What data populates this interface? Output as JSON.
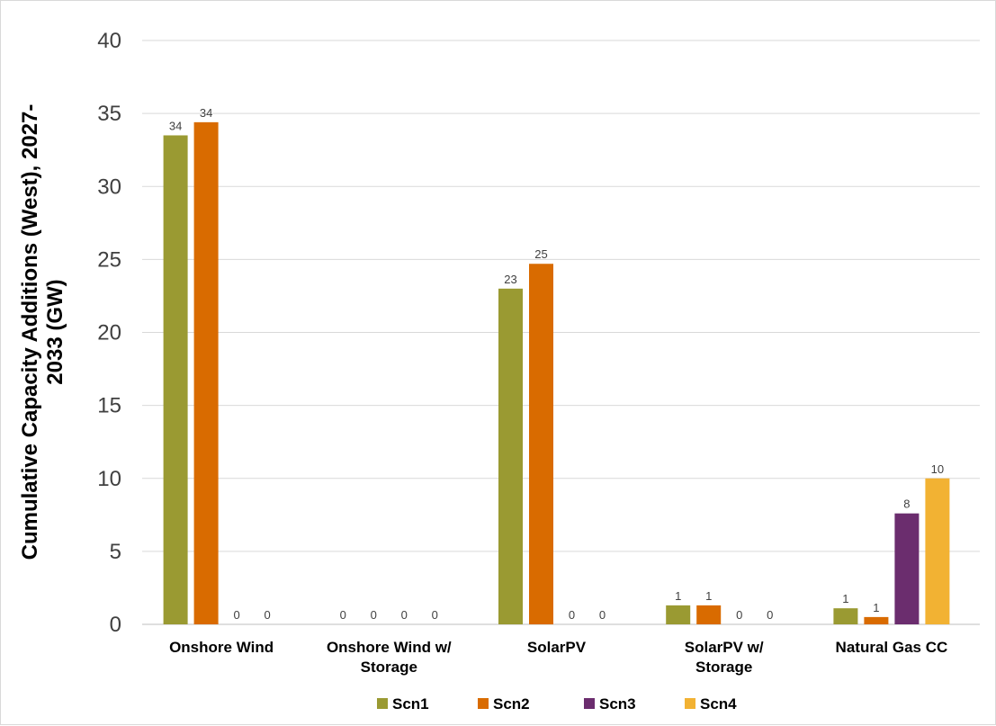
{
  "chart_data": {
    "type": "bar",
    "title": "",
    "ylabel_lines": [
      "Cumulative Capacity Additions (West), 2027-",
      "2033 (GW)"
    ],
    "xlabel": "",
    "ylim": [
      0,
      40
    ],
    "ytick_step": 5,
    "grid": true,
    "legend_position": "bottom",
    "categories": [
      [
        "Onshore Wind"
      ],
      [
        "Onshore Wind w/",
        "Storage"
      ],
      [
        "SolarPV"
      ],
      [
        "SolarPV w/",
        "Storage"
      ],
      [
        "Natural Gas CC"
      ]
    ],
    "series": [
      {
        "name": "Scn1",
        "color": "#9a9a32",
        "values": [
          33.5,
          0,
          23.0,
          1.3,
          1.1
        ],
        "labels": [
          "34",
          "0",
          "23",
          "1",
          "1"
        ]
      },
      {
        "name": "Scn2",
        "color": "#d96b00",
        "values": [
          34.4,
          0,
          24.7,
          1.3,
          0.5
        ],
        "labels": [
          "34",
          "0",
          "25",
          "1",
          "1"
        ]
      },
      {
        "name": "Scn3",
        "color": "#6b2d6e",
        "values": [
          0,
          0,
          0,
          0,
          7.6
        ],
        "labels": [
          "0",
          "0",
          "0",
          "0",
          "8"
        ]
      },
      {
        "name": "Scn4",
        "color": "#f2b233",
        "values": [
          0,
          0,
          0,
          0,
          10.0
        ],
        "labels": [
          "0",
          "0",
          "0",
          "0",
          "10"
        ]
      }
    ]
  }
}
